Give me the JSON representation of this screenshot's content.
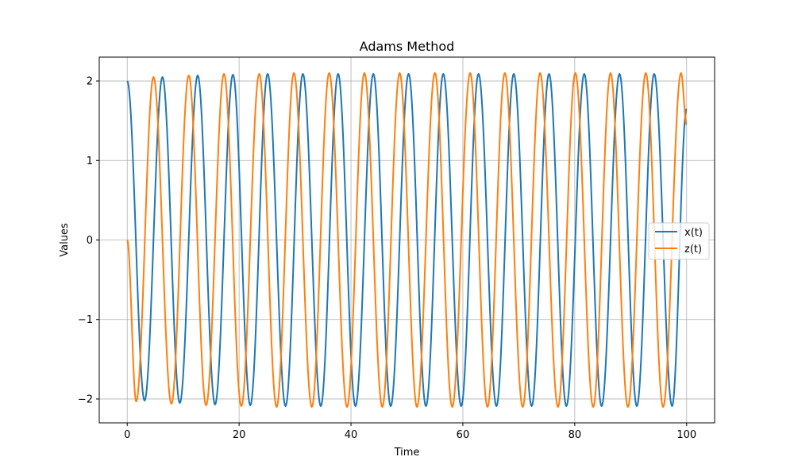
{
  "chart_data": {
    "type": "line",
    "title": "Adams Method",
    "xlabel": "Time",
    "ylabel": "Values",
    "xlim": [
      -5,
      105
    ],
    "ylim": [
      -2.3,
      2.3
    ],
    "xticks": [
      0,
      20,
      40,
      60,
      80,
      100
    ],
    "yticks": [
      -2,
      -1,
      0,
      1,
      2
    ],
    "xtick_labels": [
      "0",
      "20",
      "40",
      "60",
      "80",
      "100"
    ],
    "ytick_labels": [
      "−2",
      "−1",
      "0",
      "1",
      "2"
    ],
    "grid": true,
    "legend_position": "center-right",
    "series": [
      {
        "name": "x(t)",
        "color": "#1f77b4",
        "x": [
          0,
          3.1,
          6.3,
          9.4,
          12.6,
          15.7,
          18.9,
          22.0,
          25.1,
          28.3,
          31.4,
          34.6,
          37.7,
          40.8,
          44.0,
          47.1,
          50.3,
          53.4,
          56.5,
          59.7,
          62.8,
          66.0,
          69.1,
          72.3,
          75.4,
          78.5,
          81.7,
          84.8,
          88.0,
          91.1,
          94.2,
          97.4,
          100
        ],
        "y": [
          2.0,
          -2.02,
          2.05,
          -2.05,
          2.07,
          -2.07,
          2.08,
          -2.08,
          2.09,
          -2.09,
          2.09,
          -2.09,
          2.09,
          -2.09,
          2.09,
          -2.09,
          2.09,
          -2.09,
          2.09,
          -2.09,
          2.09,
          -2.09,
          2.09,
          -2.09,
          2.09,
          -2.09,
          2.09,
          -2.09,
          2.09,
          -2.09,
          2.09,
          -2.09,
          1.65
        ]
      },
      {
        "name": "z(t)",
        "color": "#ff7f0e",
        "x": [
          0,
          1.6,
          4.7,
          7.9,
          11.0,
          14.1,
          17.3,
          20.4,
          23.6,
          26.7,
          29.8,
          33.0,
          36.1,
          39.3,
          42.4,
          45.6,
          48.7,
          51.8,
          55.0,
          58.1,
          61.3,
          64.4,
          67.5,
          70.7,
          73.8,
          77.0,
          80.1,
          83.3,
          86.4,
          89.5,
          92.7,
          95.8,
          99.0,
          100
        ],
        "y": [
          0,
          -2.03,
          2.05,
          -2.06,
          2.07,
          -2.08,
          2.09,
          -2.09,
          2.09,
          -2.1,
          2.1,
          -2.1,
          2.1,
          -2.1,
          2.1,
          -2.1,
          2.1,
          -2.1,
          2.1,
          -2.1,
          2.1,
          -2.1,
          2.1,
          -2.1,
          2.1,
          -2.1,
          2.1,
          -2.1,
          2.1,
          -2.1,
          2.1,
          -2.1,
          2.1,
          1.45
        ]
      }
    ]
  }
}
